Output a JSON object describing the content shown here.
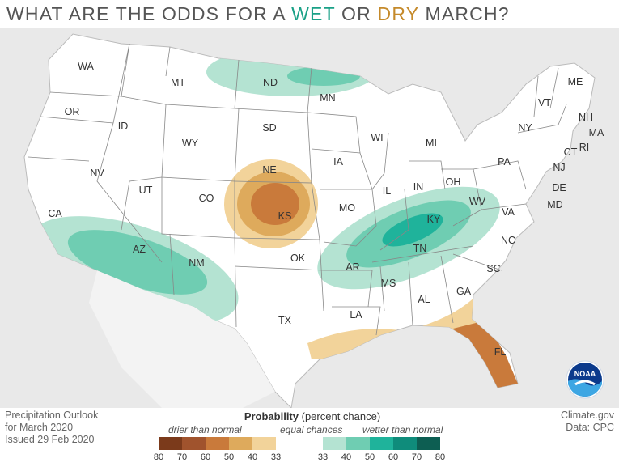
{
  "title": {
    "pre": "WHAT ARE THE ODDS FOR A ",
    "wet": "WET",
    "mid": " OR ",
    "dry": "DRY",
    "post": " MARCH?"
  },
  "colors": {
    "wet_word": "#1aa187",
    "dry_word": "#c58a2b",
    "background_ocean": "#e9e9e9",
    "land": "#ffffff"
  },
  "states": [
    "WA",
    "OR",
    "CA",
    "ID",
    "NV",
    "MT",
    "WY",
    "UT",
    "AZ",
    "CO",
    "NM",
    "ND",
    "SD",
    "NE",
    "KS",
    "OK",
    "TX",
    "MN",
    "IA",
    "MO",
    "AR",
    "LA",
    "WI",
    "IL",
    "MI",
    "IN",
    "OH",
    "KY",
    "TN",
    "MS",
    "AL",
    "GA",
    "FL",
    "SC",
    "NC",
    "VA",
    "WV",
    "PA",
    "NY",
    "VT",
    "NH",
    "ME",
    "MA",
    "RI",
    "CT",
    "NJ",
    "DE",
    "MD"
  ],
  "outlook_info": {
    "line1": "Precipitation Outlook",
    "line2": "for March 2020",
    "line3": "Issued 29 Feb 2020"
  },
  "credits": {
    "line1": "Climate.gov",
    "line2": "Data: CPC"
  },
  "legend": {
    "title_bold": "Probability",
    "title_rest": " (percent chance)",
    "drier": "drier than normal",
    "equal": "equal chances",
    "wetter": "wetter than normal",
    "ticks": [
      "80",
      "70",
      "60",
      "50",
      "40",
      "33",
      "33",
      "40",
      "50",
      "60",
      "70",
      "80"
    ],
    "colors": [
      "#7b3a1b",
      "#a0532d",
      "#c97a3b",
      "#deaa5c",
      "#f2d39a",
      "#ffffff",
      "#ffffff",
      "#b4e3d2",
      "#6fcdb2",
      "#1fb39b",
      "#0f8c7b",
      "#0d5e52"
    ]
  },
  "logo": {
    "icon": "noaa-logo",
    "text": "NOAA"
  }
}
